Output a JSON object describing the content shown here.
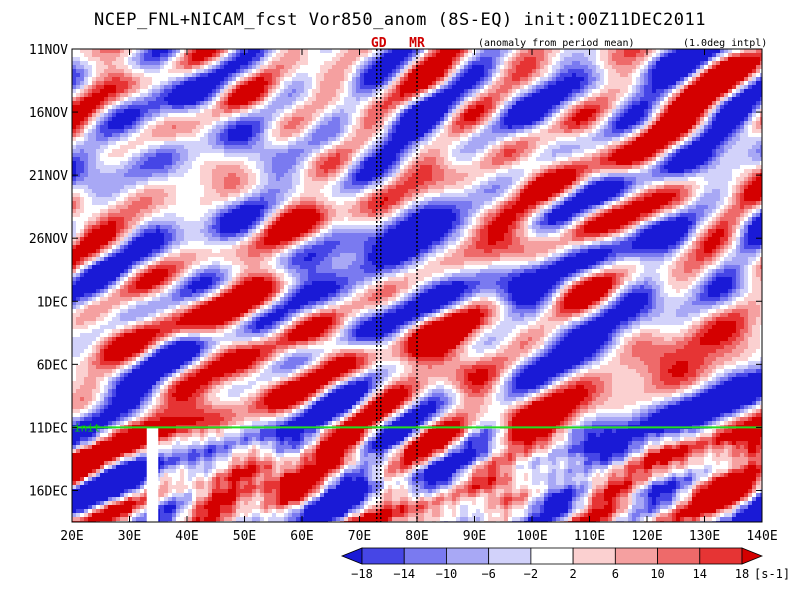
{
  "chart_data": {
    "type": "heatmap",
    "title": "NCEP_FNL+NICAM_fcst Vor850_anom (8S-EQ) init:00Z11DEC2011",
    "notes": {
      "anomaly": "(anomaly from period mean)",
      "interp": "(1.0deg intpl)"
    },
    "x_ticks": [
      "20E",
      "30E",
      "40E",
      "50E",
      "60E",
      "70E",
      "80E",
      "90E",
      "100E",
      "110E",
      "120E",
      "130E",
      "140E"
    ],
    "x_range": [
      20,
      140
    ],
    "y_ticks": [
      "11NOV",
      "16NOV",
      "21NOV",
      "26NOV",
      "1DEC",
      "6DEC",
      "11DEC",
      "16DEC"
    ],
    "y_range_days": [
      0,
      37.5
    ],
    "markers": [
      {
        "label": "GD",
        "lon": 73
      },
      {
        "label": "MR",
        "lon": 80
      }
    ],
    "init_line": {
      "label": "init",
      "day": 30
    },
    "missing_band_lon": [
      33,
      35
    ],
    "colorbar": {
      "levels": [
        "-18",
        "-14",
        "-10",
        "-6",
        "-2",
        "2",
        "6",
        "10",
        "14",
        "18"
      ],
      "unit": "[s-1]",
      "colors": [
        "#1a1ad6",
        "#4646e6",
        "#7a7af0",
        "#a8a8f5",
        "#d2d2fa",
        "#ffffff",
        "#fbd0d0",
        "#f5a0a0",
        "#ee6a6a",
        "#e63434",
        "#d40000"
      ]
    },
    "features": [
      {
        "lon": 46,
        "day": 33,
        "value": 16
      },
      {
        "lon": 48,
        "day": 21,
        "value": 13
      },
      {
        "lon": 50,
        "day": 26,
        "value": 11
      },
      {
        "lon": 64,
        "day": 23,
        "value": 10
      },
      {
        "lon": 60,
        "day": 13,
        "value": 14
      },
      {
        "lon": 52,
        "day": 4,
        "value": 13
      },
      {
        "lon": 84,
        "day": 22,
        "value": 16
      },
      {
        "lon": 90,
        "day": 26.5,
        "value": 14
      },
      {
        "lon": 102,
        "day": 29,
        "value": 13
      },
      {
        "lon": 96,
        "day": 10,
        "value": 11
      },
      {
        "lon": 92,
        "day": 16,
        "value": 10
      },
      {
        "lon": 118,
        "day": 9,
        "value": 7
      },
      {
        "lon": 134,
        "day": 34,
        "value": 12
      },
      {
        "lon": 128,
        "day": 24,
        "value": 9
      },
      {
        "lon": 52,
        "day": 7,
        "value": -16
      },
      {
        "lon": 42,
        "day": 3,
        "value": -12
      },
      {
        "lon": 35,
        "day": 11,
        "value": -10
      },
      {
        "lon": 62,
        "day": 16,
        "value": -12
      },
      {
        "lon": 70,
        "day": 20,
        "value": -14
      },
      {
        "lon": 78,
        "day": 15,
        "value": -20
      },
      {
        "lon": 86,
        "day": 18,
        "value": -12
      },
      {
        "lon": 80,
        "day": 6,
        "value": -13
      },
      {
        "lon": 100,
        "day": 20,
        "value": -18
      },
      {
        "lon": 108,
        "day": 26,
        "value": -10
      },
      {
        "lon": 100,
        "day": 4,
        "value": -9
      },
      {
        "lon": 120,
        "day": 17,
        "value": -11
      },
      {
        "lon": 130,
        "day": 28,
        "value": -9
      },
      {
        "lon": 115,
        "day": 31,
        "value": -7
      },
      {
        "lon": 30,
        "day": 34,
        "value": -9
      },
      {
        "lon": 138,
        "day": 12,
        "value": -6
      }
    ]
  }
}
